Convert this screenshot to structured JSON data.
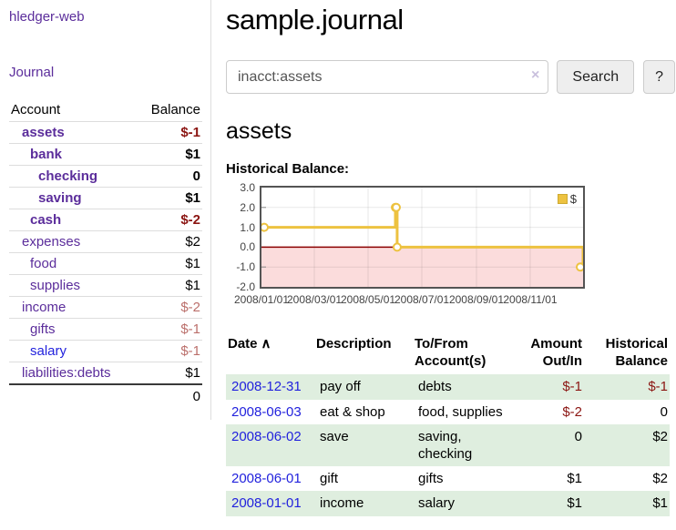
{
  "app": {
    "title": "hledger-web"
  },
  "sidebar": {
    "nav_journal": "Journal",
    "accounts": {
      "col_account": "Account",
      "col_balance": "Balance",
      "rows": [
        {
          "name": "assets",
          "depth": 1,
          "bold": true,
          "balance": "$-1",
          "neg": "strong"
        },
        {
          "name": "bank",
          "depth": 2,
          "bold": true,
          "balance": "$1",
          "neg": "none"
        },
        {
          "name": "checking",
          "depth": 3,
          "bold": true,
          "balance": "0",
          "neg": "none"
        },
        {
          "name": "saving",
          "depth": 3,
          "bold": true,
          "balance": "$1",
          "neg": "none"
        },
        {
          "name": "cash",
          "depth": 2,
          "bold": true,
          "balance": "$-2",
          "neg": "strong"
        },
        {
          "name": "expenses",
          "depth": 1,
          "bold": false,
          "balance": "$2",
          "neg": "none"
        },
        {
          "name": "food",
          "depth": 2,
          "bold": false,
          "balance": "$1",
          "neg": "none"
        },
        {
          "name": "supplies",
          "depth": 2,
          "bold": false,
          "balance": "$1",
          "neg": "none"
        },
        {
          "name": "income",
          "depth": 1,
          "bold": false,
          "balance": "$-2",
          "neg": "soft"
        },
        {
          "name": "gifts",
          "depth": 2,
          "bold": false,
          "balance": "$-1",
          "neg": "soft"
        },
        {
          "name": "salary",
          "depth": 2,
          "bold": false,
          "balance": "$-1",
          "neg": "soft",
          "link_color": "blue"
        },
        {
          "name": "liabilities:debts",
          "depth": 1,
          "bold": false,
          "balance": "$1",
          "neg": "none"
        }
      ],
      "total": "0"
    }
  },
  "main": {
    "title": "sample.journal",
    "search": {
      "value": "inacct:assets",
      "clear_icon": "×",
      "search_button": "Search",
      "help_button": "?"
    },
    "account_heading": "assets",
    "chart_title": "Historical Balance:",
    "register": {
      "columns": [
        "Date",
        "Description",
        "To/From Account(s)",
        "Amount Out/In",
        "Historical Balance"
      ],
      "sort_icon": "∧",
      "rows": [
        {
          "date": "2008-12-31",
          "description": "pay off",
          "accounts": "debts",
          "amount": "$-1",
          "amount_neg": true,
          "balance": "$-1",
          "balance_neg": true
        },
        {
          "date": "2008-06-03",
          "description": "eat & shop",
          "accounts": "food, supplies",
          "amount": "$-2",
          "amount_neg": true,
          "balance": "0",
          "balance_neg": false
        },
        {
          "date": "2008-06-02",
          "description": "save",
          "accounts": "saving, checking",
          "amount": "0",
          "amount_neg": false,
          "balance": "$2",
          "balance_neg": false
        },
        {
          "date": "2008-06-01",
          "description": "gift",
          "accounts": "gifts",
          "amount": "$1",
          "amount_neg": false,
          "balance": "$2",
          "balance_neg": false
        },
        {
          "date": "2008-01-01",
          "description": "income",
          "accounts": "salary",
          "amount": "$1",
          "amount_neg": false,
          "balance": "$1",
          "balance_neg": false
        }
      ]
    }
  },
  "chart_data": {
    "type": "line",
    "title": "Historical Balance",
    "series": [
      {
        "name": "$",
        "color": "#edc240",
        "step": true,
        "points": [
          [
            "2008-01-01",
            1
          ],
          [
            "2008-06-01",
            2
          ],
          [
            "2008-06-02",
            2
          ],
          [
            "2008-06-03",
            0
          ],
          [
            "2008-12-31",
            -1
          ]
        ]
      }
    ],
    "x_range": [
      "2008-01-01",
      "2008-12-31"
    ],
    "ylim": [
      -2,
      3
    ],
    "y_ticks": [
      3,
      2,
      1,
      0,
      -1,
      -2
    ],
    "x_ticks": [
      {
        "date": "2008-01-01",
        "label": "2008/01/01"
      },
      {
        "date": "2008-03-01",
        "label": "2008/03/01"
      },
      {
        "date": "2008-05-01",
        "label": "2008/05/01"
      },
      {
        "date": "2008-07-01",
        "label": "2008/07/01"
      },
      {
        "date": "2008-09-01",
        "label": "2008/09/01"
      },
      {
        "date": "2008-11-01",
        "label": "2008/11/01"
      }
    ],
    "legend": {
      "label": "$",
      "position": "top-right"
    },
    "grid": true,
    "negative_region_color": "#fbdcdc",
    "zero_line_color": "#8b0000",
    "point_style": {
      "fill": "#ffffff",
      "stroke": "#edc240",
      "radius": 4
    }
  },
  "colors": {
    "link_purple": "#5b2d9b",
    "link_blue": "#2222dd",
    "negative_strong": "#8b1512",
    "negative_soft": "#bb6f6b",
    "row_stripe_green": "#dfeedf",
    "series_gold": "#edc240",
    "chart_negative_fill": "#fbdcdc",
    "chart_zero_line": "#8b0000"
  }
}
